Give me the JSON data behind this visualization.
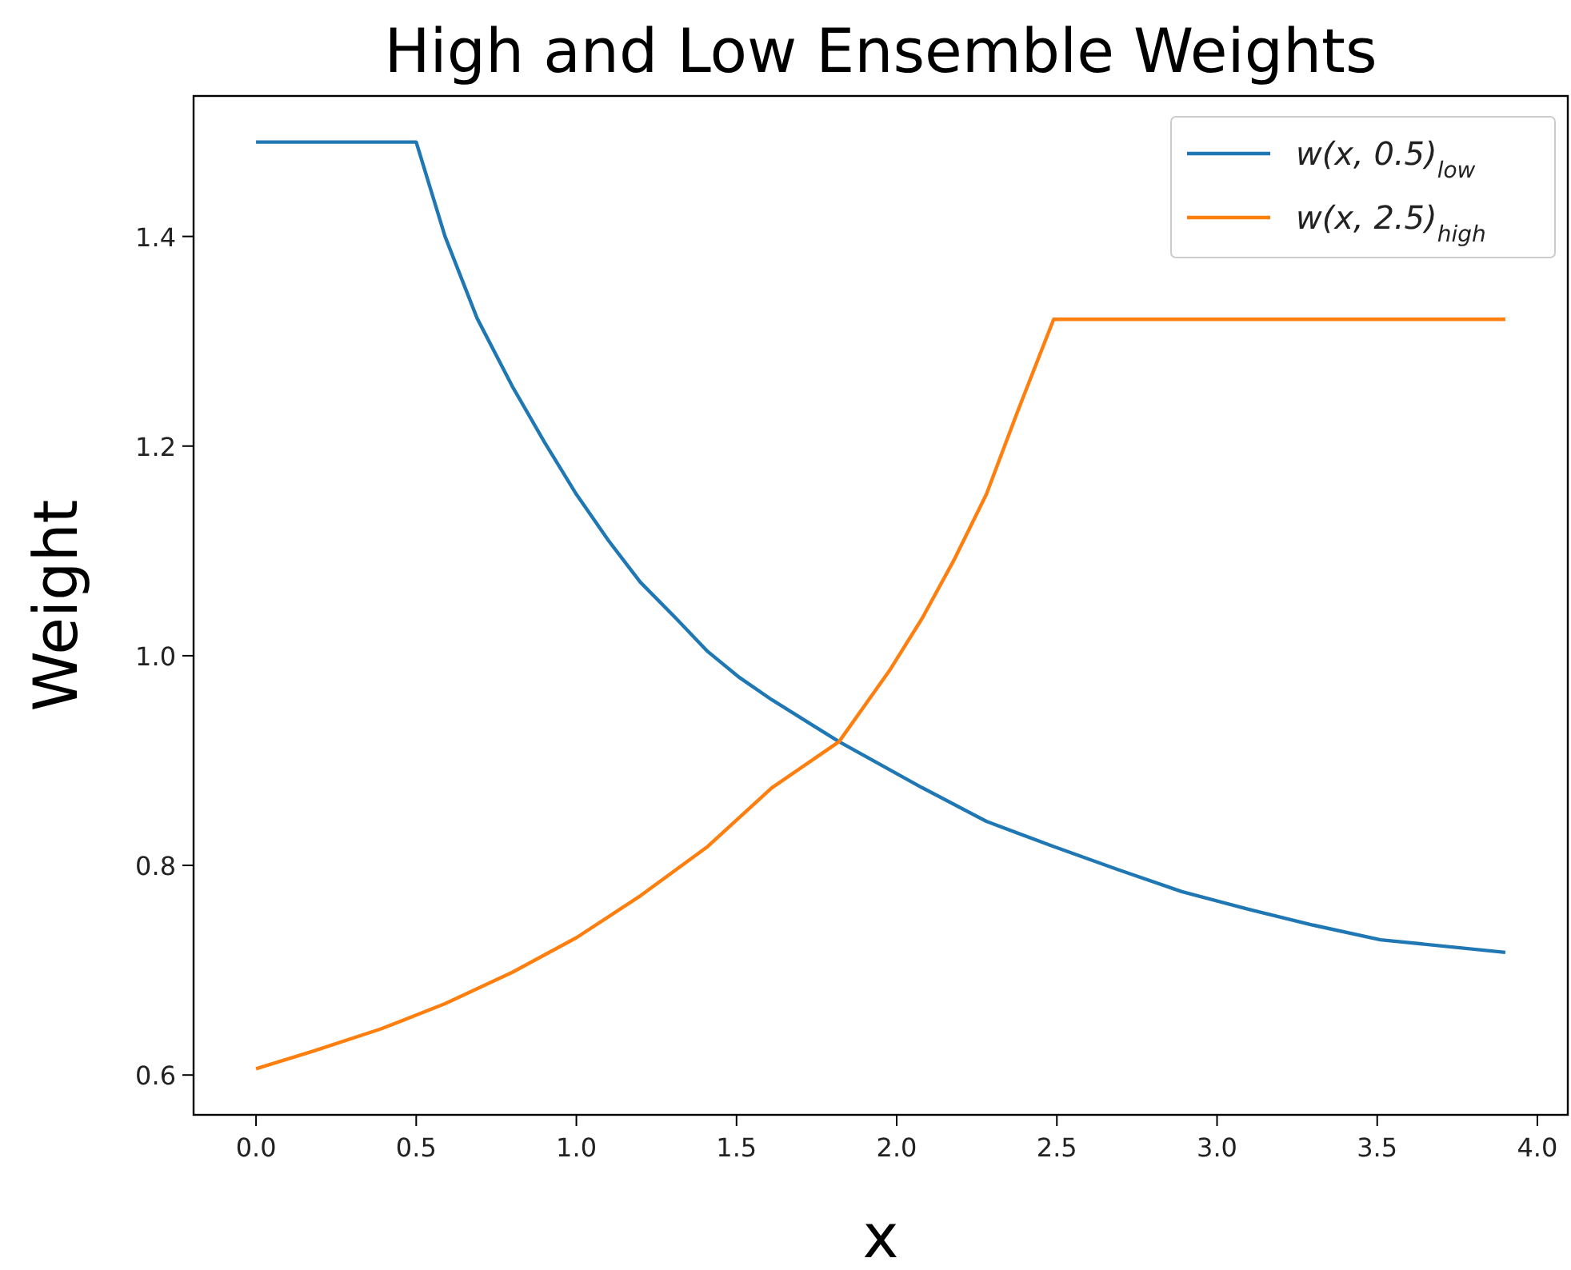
{
  "chart_data": {
    "type": "line",
    "title": "High and Low Ensemble Weights",
    "xlabel": "x",
    "ylabel": "Weight",
    "xlim": [
      -0.195,
      4.095
    ],
    "ylim": [
      0.562,
      1.534
    ],
    "xticks": [
      {
        "value": 0,
        "label": "0.0"
      },
      {
        "value": 0.5,
        "label": "0.5"
      },
      {
        "value": 1,
        "label": "1.0"
      },
      {
        "value": 1.5,
        "label": "1.5"
      },
      {
        "value": 2,
        "label": "2.0"
      },
      {
        "value": 2.5,
        "label": "2.5"
      },
      {
        "value": 3,
        "label": "3.0"
      },
      {
        "value": 3.5,
        "label": "3.5"
      },
      {
        "value": 4,
        "label": "4.0"
      }
    ],
    "yticks": [
      {
        "value": 0.6,
        "label": "0.6"
      },
      {
        "value": 0.8,
        "label": "0.8"
      },
      {
        "value": 1,
        "label": "1.0"
      },
      {
        "value": 1.2,
        "label": "1.2"
      },
      {
        "value": 1.4,
        "label": "1.4"
      }
    ],
    "legend": "top right",
    "grid": false,
    "series": [
      {
        "name": "w(x, 0.5)$_{low}$",
        "color": "#1f77b4",
        "x": [
          0,
          0.5,
          0.59,
          0.69,
          0.8,
          0.9,
          1.0,
          1.1,
          1.2,
          1.31,
          1.41,
          1.51,
          1.61,
          1.82,
          2.08,
          2.28,
          2.49,
          2.69,
          2.89,
          3.1,
          3.3,
          3.51,
          3.9
        ],
        "values": [
          1.49,
          1.49,
          1.4,
          1.322,
          1.257,
          1.204,
          1.154,
          1.11,
          1.07,
          1.036,
          1.004,
          0.979,
          0.958,
          0.918,
          0.874,
          0.842,
          0.818,
          0.796,
          0.775,
          0.758,
          0.743,
          0.729,
          0.717
        ]
      },
      {
        "name": "w(x, 2.5)$_{high}$",
        "color": "#ff7f0e",
        "x": [
          0,
          0.18,
          0.39,
          0.59,
          0.8,
          1.0,
          1.2,
          1.41,
          1.61,
          1.82,
          1.98,
          2.08,
          2.18,
          2.28,
          2.38,
          2.49,
          3.9
        ],
        "values": [
          0.606,
          0.623,
          0.644,
          0.668,
          0.698,
          0.731,
          0.771,
          0.818,
          0.874,
          0.918,
          0.987,
          1.036,
          1.092,
          1.154,
          1.235,
          1.321,
          1.321
        ]
      }
    ]
  }
}
